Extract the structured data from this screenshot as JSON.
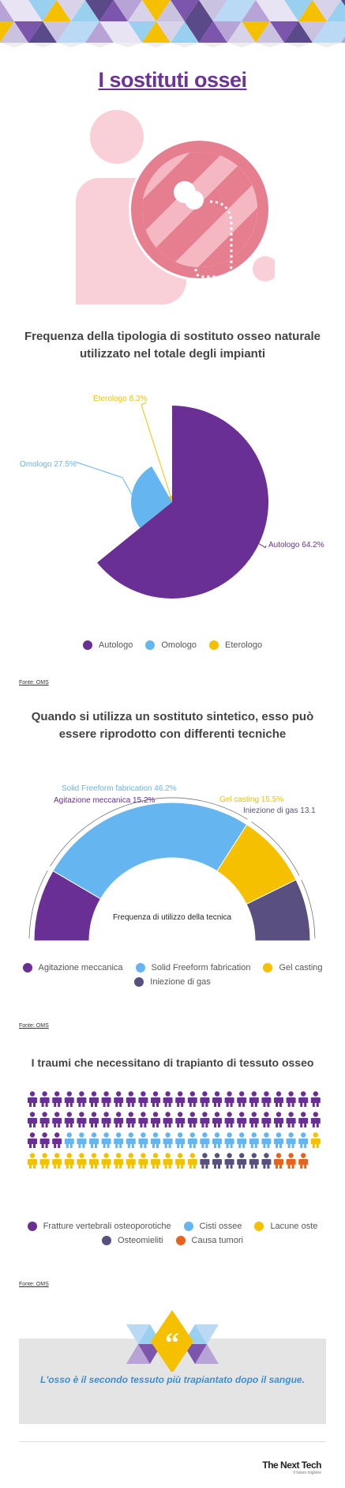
{
  "header": {
    "title": "I sostituti ossei"
  },
  "section1": {
    "subtitle": "Frequenza della tipologia di sostituto osseo naturale utilizzato nel totale degli impianti",
    "source": "Fonte: OMS"
  },
  "section2": {
    "subtitle": "Quando si utilizza un sostituto sintetico, esso può essere riprodotto con differenti tecniche",
    "center_label": "Frequenza di utilizzo della tecnica",
    "source": "Fonte: OMS"
  },
  "section3": {
    "subtitle": "I traumi che necessitano di trapianto di tessuto osseo",
    "source": "Fonte: OMS"
  },
  "quote": {
    "text": "L'osso è il secondo tessuto più trapiantato dopo il sangue."
  },
  "brand": {
    "name": "The Next Tech",
    "tagline": "Il futuro migliore"
  },
  "chart_data": [
    {
      "type": "pie",
      "title": "Frequenza della tipologia di sostituto osseo naturale utilizzato nel totale degli impianti",
      "categories": [
        "Autologo",
        "Omologo",
        "Eterologo"
      ],
      "values": [
        64.2,
        27.5,
        8.3
      ],
      "labels": [
        "Autologo 64.2%",
        "Omologo 27.5%",
        "Eterologo 8.3%"
      ],
      "colors": [
        "#6a2f95",
        "#64b5f0",
        "#f5c000"
      ],
      "legend": [
        "Autologo",
        "Omologo",
        "Eterologo"
      ],
      "legend_position": "bottom"
    },
    {
      "type": "pie",
      "subtype": "semi-donut",
      "categories": [
        "Agitazione meccanica",
        "Solid Freeform fabrication",
        "Gel casting",
        "Iniezione di gas"
      ],
      "values": [
        15.2,
        46.2,
        15.5,
        13.1
      ],
      "labels": [
        "Agitazione meccanica 15.2%",
        "Solid Freeform fabrication 46.2%",
        "Gel casting 15.5%",
        "Iniezione di gas 13.1"
      ],
      "colors": [
        "#6a2f95",
        "#64b5f0",
        "#f5c000",
        "#5a5080"
      ],
      "legend": [
        "Agitazione meccanica",
        "Solid Freeform fabrication",
        "Gel casting",
        "Iniezione di gas"
      ],
      "legend_position": "bottom"
    },
    {
      "type": "pictograph",
      "categories": [
        "Fratture vertebrali osteoporotiche",
        "Cisti ossee",
        "Lacune oste",
        "Osteomieliti",
        "Causa tumori"
      ],
      "values": [
        51,
        20,
        15,
        6,
        3
      ],
      "colors": [
        "#6a2f95",
        "#64b5f0",
        "#f5c000",
        "#5a5080",
        "#e8621c"
      ],
      "legend": [
        "Fratture vertebrali osteoporotiche",
        "Cisti ossee",
        "Lacune oste",
        "Osteomieliti",
        "Causa tumori"
      ],
      "legend_position": "bottom"
    }
  ]
}
